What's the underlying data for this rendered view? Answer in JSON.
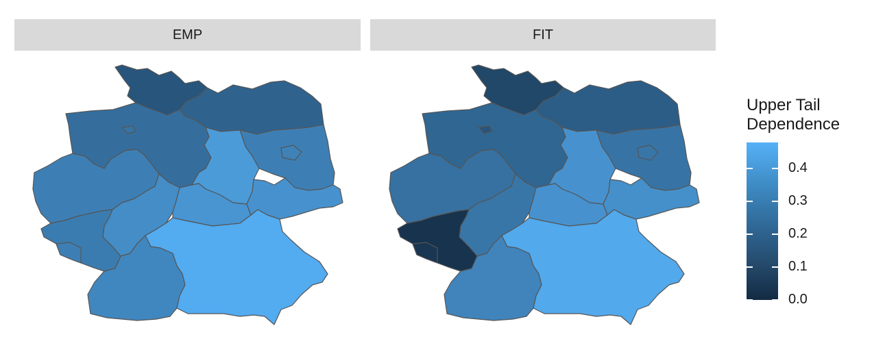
{
  "facets": [
    {
      "key": "emp",
      "label": "EMP"
    },
    {
      "key": "fit",
      "label": "FIT"
    }
  ],
  "legend": {
    "title_line1": "Upper Tail",
    "title_line2": "Dependence",
    "min": 0.0,
    "max": 0.48,
    "low_color": "#132B43",
    "high_color": "#56B1F7",
    "ticks": [
      {
        "label": "0.4",
        "value": 0.4
      },
      {
        "label": "0.3",
        "value": 0.3
      },
      {
        "label": "0.2",
        "value": 0.2
      },
      {
        "label": "0.1",
        "value": 0.1
      },
      {
        "label": "0.0",
        "value": 0.0
      }
    ]
  },
  "map_data": {
    "regions": [
      {
        "id": "schleswig-holstein",
        "emp": 0.15,
        "fit": 0.1
      },
      {
        "id": "hamburg",
        "emp": 0.25,
        "fit": 0.2
      },
      {
        "id": "mecklenburg-vorpommern",
        "emp": 0.2,
        "fit": 0.18
      },
      {
        "id": "niedersachsen",
        "emp": 0.24,
        "fit": 0.21
      },
      {
        "id": "bremen",
        "emp": 0.26,
        "fit": 0.15
      },
      {
        "id": "brandenburg",
        "emp": 0.3,
        "fit": 0.26
      },
      {
        "id": "berlin",
        "emp": 0.31,
        "fit": 0.27
      },
      {
        "id": "sachsen-anhalt",
        "emp": 0.4,
        "fit": 0.37
      },
      {
        "id": "nordrhein-westfalen",
        "emp": 0.3,
        "fit": 0.25
      },
      {
        "id": "hessen",
        "emp": 0.35,
        "fit": 0.27
      },
      {
        "id": "thueringen",
        "emp": 0.38,
        "fit": 0.37
      },
      {
        "id": "sachsen",
        "emp": 0.37,
        "fit": 0.36
      },
      {
        "id": "rheinland-pfalz",
        "emp": 0.29,
        "fit": 0.03
      },
      {
        "id": "saarland",
        "emp": 0.3,
        "fit": 0.04
      },
      {
        "id": "baden-wuerttemberg",
        "emp": 0.33,
        "fit": 0.32
      },
      {
        "id": "bayern",
        "emp": 0.46,
        "fit": 0.45
      }
    ]
  }
}
